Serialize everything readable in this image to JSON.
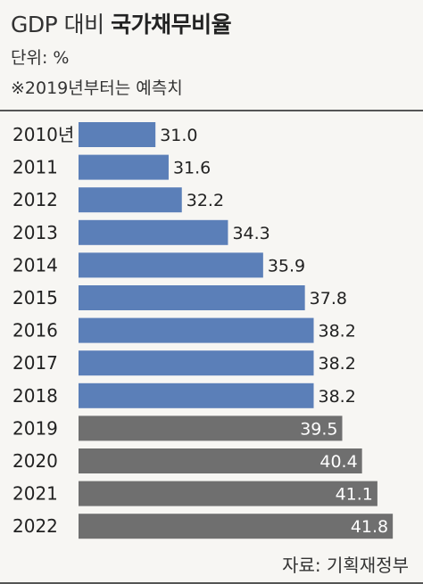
{
  "title_light": "GDP 대비",
  "title_bold": "국가채무비율",
  "unit": "단위: %",
  "note": "※2019년부터는 예측치",
  "source": "자료: 기획재정부",
  "colors": {
    "actual": "#5b7fb8",
    "forecast": "#6f6f6f",
    "background": "#f7f6f3"
  },
  "chart_data": {
    "type": "bar",
    "orientation": "horizontal",
    "categories": [
      "2010년",
      "2011",
      "2012",
      "2013",
      "2014",
      "2015",
      "2016",
      "2017",
      "2018",
      "2019",
      "2020",
      "2021",
      "2022"
    ],
    "values": [
      31.0,
      31.6,
      32.2,
      34.3,
      35.9,
      37.8,
      38.2,
      38.2,
      38.2,
      39.5,
      40.4,
      41.1,
      41.8
    ],
    "value_labels": [
      "31.0",
      "31.6",
      "32.2",
      "34.3",
      "35.9",
      "37.8",
      "38.2",
      "38.2",
      "38.2",
      "39.5",
      "40.4",
      "41.1",
      "41.8"
    ],
    "forecast_from_index": 9,
    "xlim": [
      27.5,
      42.2
    ]
  }
}
